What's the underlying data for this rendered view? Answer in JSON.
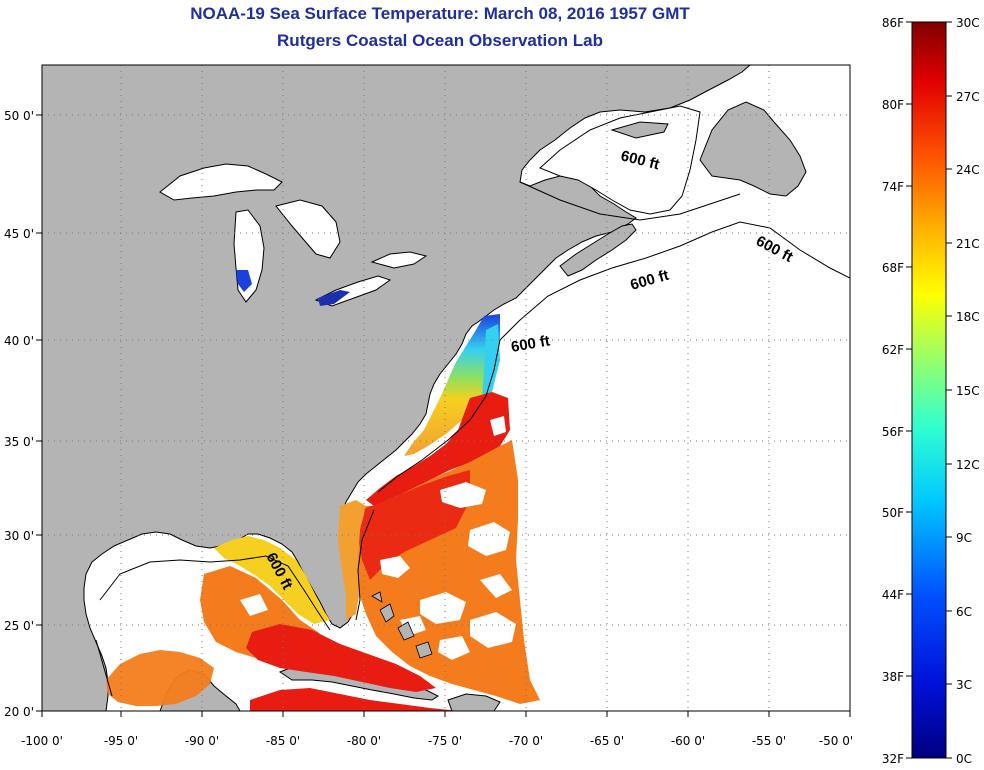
{
  "title": "NOAA-19 Sea Surface Temperature:  March 08, 2016 1957 GMT",
  "subtitle": "Rutgers Coastal Ocean Observation Lab",
  "lat_ticks": [
    "50 0'",
    "45 0'",
    "40 0'",
    "35 0'",
    "30 0'",
    "25 0'",
    "20 0'"
  ],
  "lon_ticks": [
    "-100 0'",
    "-95 0'",
    "-90 0'",
    "-85 0'",
    "-80 0'",
    "-75 0'",
    "-70 0'",
    "-65 0'",
    "-60 0'",
    "-55 0'",
    "-50 0'"
  ],
  "contour_labels": [
    "600 ft",
    "600 ft",
    "600 ft",
    "600 ft",
    "600 ft"
  ],
  "colorbar": {
    "f_labels": [
      "86F",
      "80F",
      "74F",
      "68F",
      "62F",
      "56F",
      "50F",
      "44F",
      "38F",
      "32F"
    ],
    "c_labels": [
      "30C",
      "27C",
      "24C",
      "21C",
      "18C",
      "15C",
      "12C",
      "9C",
      "6C",
      "3C",
      "0C"
    ]
  },
  "colors": {
    "land": "#b4b4b4",
    "ocean_nodata": "#ffffff",
    "title": "#1f2f9e",
    "warm": "#e81c10",
    "orange": "#f47c1c",
    "yellow": "#f5e61c",
    "cyan": "#35d0f0",
    "blue": "#1c3fe0"
  }
}
